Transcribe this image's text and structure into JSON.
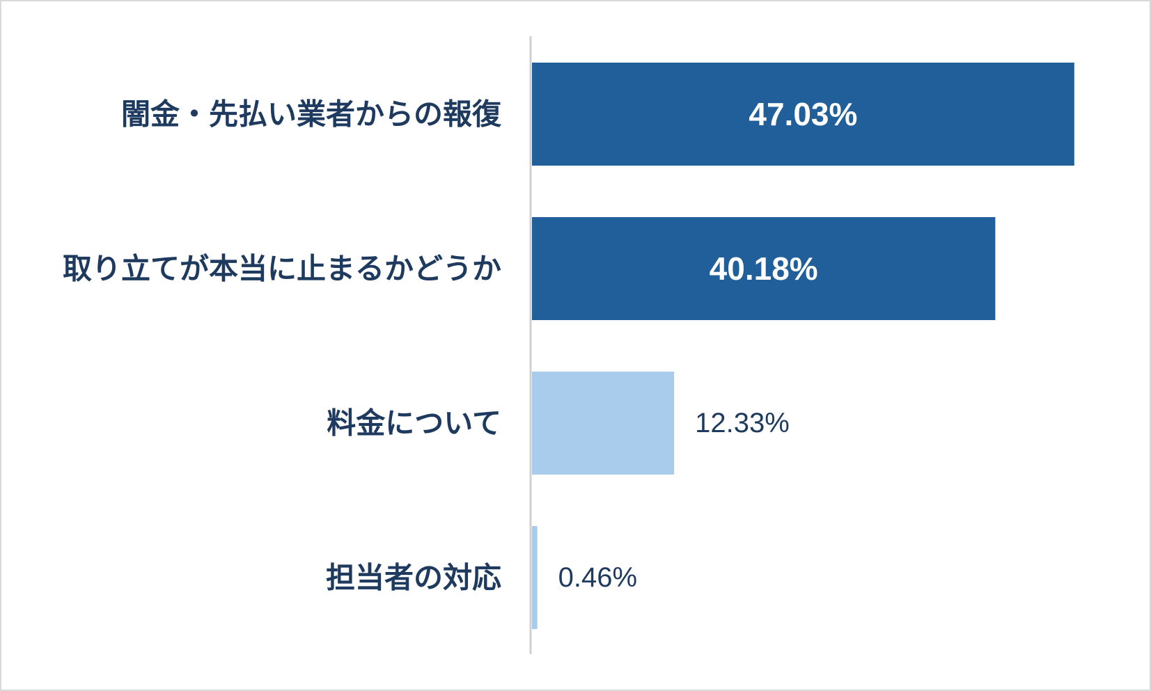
{
  "chart_data": {
    "type": "bar",
    "orientation": "horizontal",
    "categories": [
      "闇金・先払い業者からの報復",
      "取り立てが本当に止まるかどうか",
      "料金について",
      "担当者の対応"
    ],
    "values": [
      47.03,
      40.18,
      12.33,
      0.46
    ],
    "value_labels": [
      "47.03%",
      "40.18%",
      "12.33%",
      "0.46%"
    ],
    "bar_colors": [
      "#215f9a",
      "#215f9a",
      "#a9cbec",
      "#a9cbec"
    ],
    "title": "",
    "xlabel": "",
    "ylabel": "",
    "xlim": [
      0,
      50
    ],
    "grid": false,
    "legend": "none"
  }
}
